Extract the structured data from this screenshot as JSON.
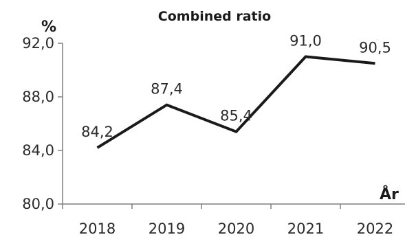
{
  "chart_data": {
    "type": "line",
    "title": "Combined ratio",
    "ylabel": "%",
    "xlabel": "År",
    "categories": [
      "2018",
      "2019",
      "2020",
      "2021",
      "2022"
    ],
    "values": [
      84.2,
      87.4,
      85.4,
      91.0,
      90.5
    ],
    "data_labels": [
      "84,2",
      "87,4",
      "85,4",
      "91,0",
      "90,5"
    ],
    "yticks": [
      "80,0",
      "84,0",
      "88,0",
      "92,0"
    ],
    "ytick_values": [
      80,
      84,
      88,
      92
    ],
    "ylim": [
      80,
      92
    ],
    "grid": false,
    "legend": "none",
    "colors": {
      "line": "#1a1a1a",
      "axis": "#7f7f7f",
      "text": "#2a2a2a"
    }
  }
}
